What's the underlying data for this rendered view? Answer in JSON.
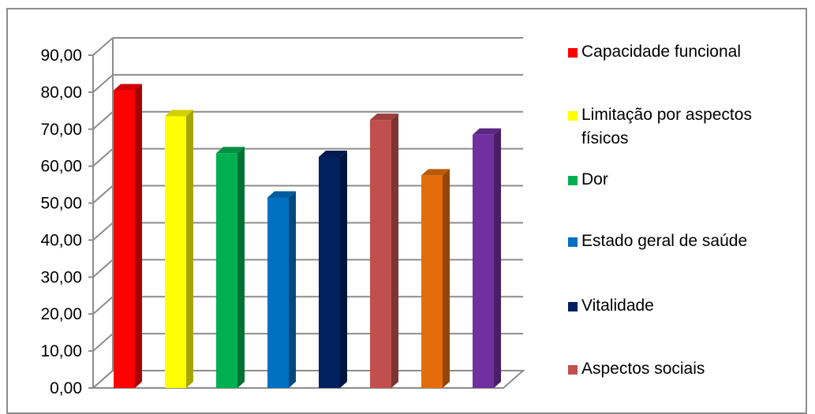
{
  "chart_data": {
    "type": "bar",
    "title": "",
    "xlabel": "",
    "ylabel": "",
    "ylim": [
      0,
      90
    ],
    "y_ticks": [
      "0,00",
      "10,00",
      "20,00",
      "30,00",
      "40,00",
      "50,00",
      "60,00",
      "70,00",
      "80,00",
      "90,00"
    ],
    "grid": true,
    "legend_position": "right",
    "categories": [
      "Capacidade funcional",
      "Limitação por aspectos físicos",
      "Dor",
      "Estado geral de saúde",
      "Vitalidade",
      "Aspectos sociais",
      "",
      ""
    ],
    "values": [
      80.5,
      73.5,
      63.5,
      51.5,
      62.5,
      72.5,
      57.5,
      68.5
    ],
    "colors": [
      "#ff0000",
      "#ffff00",
      "#00b050",
      "#0070c0",
      "#002060",
      "#c0504d",
      "#e46c0a",
      "#7030a0"
    ],
    "legend": [
      {
        "label": "Capacidade funcional",
        "color": "#ff0000"
      },
      {
        "label": "Limitação por aspectos físicos",
        "color": "#ffff00"
      },
      {
        "label": "Dor",
        "color": "#00b050"
      },
      {
        "label": "Estado geral de saúde",
        "color": "#0070c0"
      },
      {
        "label": "Vitalidade",
        "color": "#002060"
      },
      {
        "label": "Aspectos sociais",
        "color": "#c0504d"
      }
    ]
  }
}
